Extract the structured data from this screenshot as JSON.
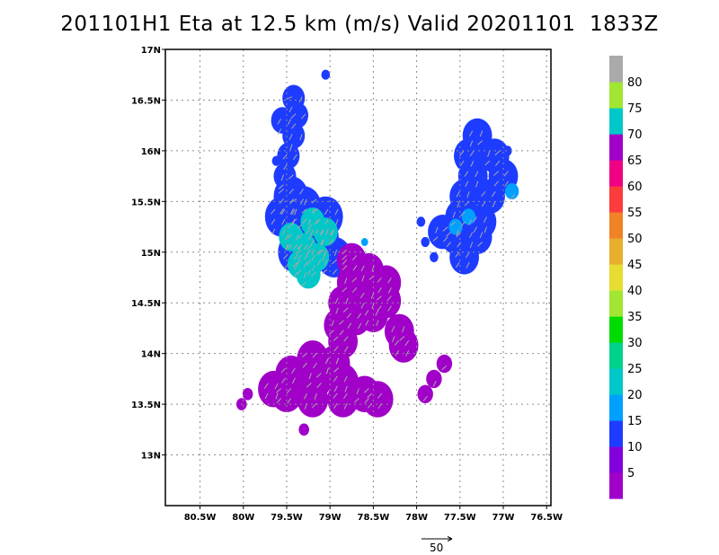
{
  "title": "201101H1 Eta at 12.5 km (m/s) Valid 20201101  1833Z",
  "map": {
    "lon_range": [
      -80.9,
      -76.45
    ],
    "lat_range": [
      12.5,
      17.0
    ],
    "lon_ticks": [
      {
        "value": -80.5,
        "label": "80.5W"
      },
      {
        "value": -80.0,
        "label": "80W"
      },
      {
        "value": -79.5,
        "label": "79.5W"
      },
      {
        "value": -79.0,
        "label": "79W"
      },
      {
        "value": -78.5,
        "label": "78.5W"
      },
      {
        "value": -78.0,
        "label": "78W"
      },
      {
        "value": -77.5,
        "label": "77.5W"
      },
      {
        "value": -77.0,
        "label": "77W"
      },
      {
        "value": -76.5,
        "label": "76.5W"
      }
    ],
    "lat_ticks": [
      {
        "value": 13.0,
        "label": "13N"
      },
      {
        "value": 13.5,
        "label": "13.5N"
      },
      {
        "value": 14.0,
        "label": "14N"
      },
      {
        "value": 14.5,
        "label": "14.5N"
      },
      {
        "value": 15.0,
        "label": "15N"
      },
      {
        "value": 15.5,
        "label": "15.5N"
      },
      {
        "value": 16.0,
        "label": "16N"
      },
      {
        "value": 16.5,
        "label": "16.5N"
      },
      {
        "value": 17.0,
        "label": "17N"
      }
    ],
    "grid": true,
    "vector_color": "#a8a8a8"
  },
  "colorbar": {
    "labels": [
      "5",
      "10",
      "15",
      "20",
      "25",
      "30",
      "35",
      "40",
      "45",
      "50",
      "55",
      "60",
      "65",
      "70",
      "75",
      "80"
    ],
    "colors": [
      "#a000c8",
      "#8200dc",
      "#1e3cff",
      "#00a0ff",
      "#00c8c8",
      "#00d28c",
      "#00dc00",
      "#a0e632",
      "#e6dc32",
      "#e6af2d",
      "#f08228",
      "#fa3c3c",
      "#f00082",
      "#a000c8",
      "#00c8c8",
      "#a0e632",
      "#aaaaaa"
    ]
  },
  "reference_vector": {
    "label": "50"
  },
  "regions": [
    {
      "name": "north-strip",
      "cells": [
        [
          -79.42,
          16.52
        ],
        [
          -79.38,
          16.35
        ],
        [
          -79.42,
          16.15
        ],
        [
          -79.48,
          15.95
        ],
        [
          -79.52,
          15.75
        ],
        [
          -79.55,
          16.3
        ]
      ],
      "radius": 0.13,
      "color": "#1e3cff"
    },
    {
      "name": "center-north",
      "cells": [
        [
          -79.45,
          15.55
        ],
        [
          -79.3,
          15.45
        ],
        [
          -79.05,
          15.35
        ],
        [
          -79.35,
          15.2
        ],
        [
          -79.1,
          15.15
        ],
        [
          -79.25,
          14.95
        ],
        [
          -78.95,
          14.95
        ],
        [
          -79.55,
          15.35
        ],
        [
          -79.4,
          15.0
        ]
      ],
      "radius": 0.2,
      "color": "#1e3cff"
    },
    {
      "name": "center-cyan",
      "cells": [
        [
          -79.2,
          15.3
        ],
        [
          -79.05,
          15.2
        ],
        [
          -79.3,
          15.05
        ],
        [
          -79.15,
          14.95
        ],
        [
          -79.35,
          14.88
        ],
        [
          -79.25,
          14.78
        ],
        [
          -79.45,
          15.15
        ]
      ],
      "radius": 0.14,
      "color": "#00c8c8"
    },
    {
      "name": "center-purple",
      "cells": [
        [
          -78.75,
          14.92
        ],
        [
          -78.55,
          14.82
        ],
        [
          -78.35,
          14.7
        ],
        [
          -78.75,
          14.7
        ],
        [
          -78.55,
          14.55
        ],
        [
          -78.35,
          14.52
        ],
        [
          -78.85,
          14.5
        ],
        [
          -78.7,
          14.35
        ],
        [
          -78.9,
          14.28
        ],
        [
          -78.5,
          14.38
        ],
        [
          -78.85,
          14.12
        ],
        [
          -78.2,
          14.22
        ],
        [
          -78.15,
          14.08
        ]
      ],
      "radius": 0.17,
      "color": "#a000c8"
    },
    {
      "name": "south-purple",
      "cells": [
        [
          -79.2,
          13.95
        ],
        [
          -78.95,
          13.9
        ],
        [
          -79.45,
          13.8
        ],
        [
          -79.15,
          13.75
        ],
        [
          -78.85,
          13.72
        ],
        [
          -79.5,
          13.6
        ],
        [
          -79.2,
          13.55
        ],
        [
          -78.85,
          13.55
        ],
        [
          -78.6,
          13.6
        ],
        [
          -79.65,
          13.65
        ],
        [
          -78.45,
          13.55
        ],
        [
          -78.95,
          13.9
        ]
      ],
      "radius": 0.18,
      "color": "#a000c8"
    },
    {
      "name": "south-east-strip",
      "cells": [
        [
          -77.68,
          13.9
        ],
        [
          -77.8,
          13.75
        ],
        [
          -77.9,
          13.6
        ]
      ],
      "radius": 0.09,
      "color": "#a000c8"
    },
    {
      "name": "south-west-dot",
      "cells": [
        [
          -79.95,
          13.6
        ],
        [
          -80.02,
          13.5
        ],
        [
          -79.3,
          13.25
        ]
      ],
      "radius": 0.06,
      "color": "#a000c8"
    },
    {
      "name": "east-blue",
      "cells": [
        [
          -77.3,
          16.15
        ],
        [
          -77.4,
          15.95
        ],
        [
          -77.1,
          15.95
        ],
        [
          -77.35,
          15.75
        ],
        [
          -77.0,
          15.75
        ],
        [
          -77.45,
          15.55
        ],
        [
          -77.15,
          15.55
        ],
        [
          -77.5,
          15.35
        ],
        [
          -77.25,
          15.3
        ],
        [
          -77.55,
          15.15
        ],
        [
          -77.3,
          15.15
        ],
        [
          -77.45,
          14.95
        ],
        [
          -77.7,
          15.2
        ]
      ],
      "radius": 0.17,
      "color": "#1e3cff"
    },
    {
      "name": "east-cyan",
      "cells": [
        [
          -77.4,
          15.35
        ],
        [
          -76.9,
          15.6
        ],
        [
          -77.55,
          15.25
        ]
      ],
      "radius": 0.08,
      "color": "#00a0ff"
    },
    {
      "name": "east-scatter",
      "cells": [
        [
          -77.9,
          15.1
        ],
        [
          -77.8,
          14.95
        ],
        [
          -77.95,
          15.3
        ],
        [
          -76.95,
          16.0
        ],
        [
          -79.62,
          15.9
        ],
        [
          -79.05,
          16.75
        ]
      ],
      "radius": 0.05,
      "color": "#1e3cff"
    },
    {
      "name": "small-cyan-dot",
      "cells": [
        [
          -78.6,
          15.1
        ]
      ],
      "radius": 0.04,
      "color": "#00a0ff"
    }
  ]
}
